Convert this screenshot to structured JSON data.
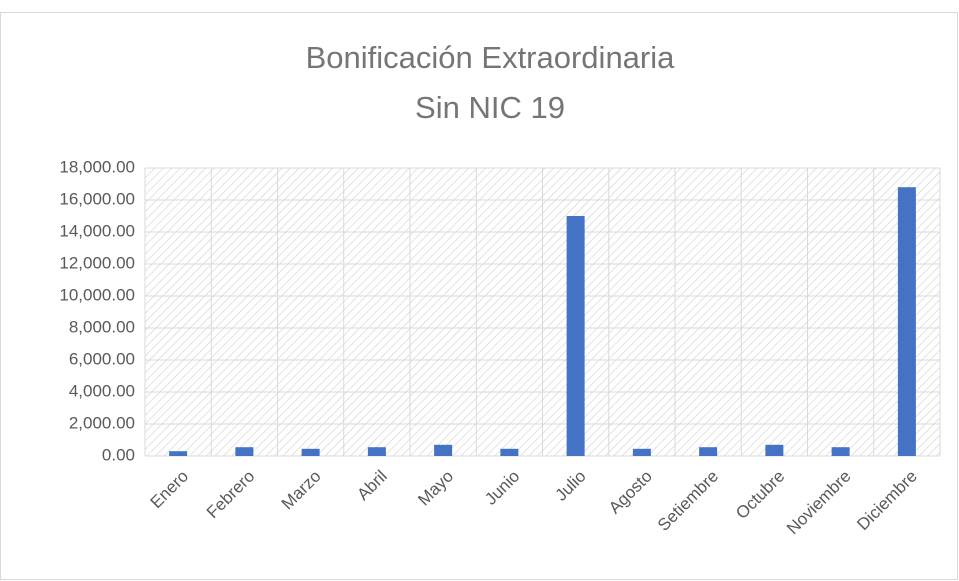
{
  "chart_data": {
    "type": "bar",
    "title": "Bonificación Extraordinaria",
    "subtitle": "Sin NIC 19",
    "categories": [
      "Enero",
      "Febrero",
      "Marzo",
      "Abril",
      "Mayo",
      "Junio",
      "Julio",
      "Agosto",
      "Setiembre",
      "Octubre",
      "Noviembre",
      "Diciembre"
    ],
    "values": [
      300,
      550,
      450,
      550,
      700,
      450,
      15000,
      450,
      550,
      700,
      550,
      16800
    ],
    "color": "#4472c4",
    "ylim": [
      0,
      18000
    ],
    "yticks": [
      {
        "value": 0,
        "label": "0.00"
      },
      {
        "value": 2000,
        "label": "2,000.00"
      },
      {
        "value": 4000,
        "label": "4,000.00"
      },
      {
        "value": 6000,
        "label": "6,000.00"
      },
      {
        "value": 8000,
        "label": "8,000.00"
      },
      {
        "value": 10000,
        "label": "10,000.00"
      },
      {
        "value": 12000,
        "label": "12,000.00"
      },
      {
        "value": 14000,
        "label": "14,000.00"
      },
      {
        "value": 16000,
        "label": "16,000.00"
      },
      {
        "value": 18000,
        "label": "18,000.00"
      }
    ],
    "grid": true
  }
}
